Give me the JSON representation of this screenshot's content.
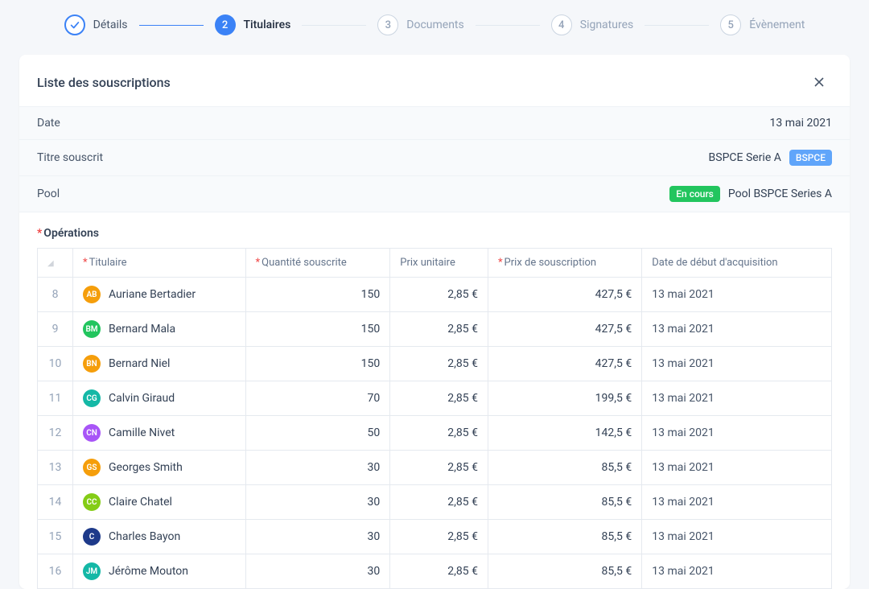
{
  "stepper": {
    "steps": [
      {
        "num": "1",
        "label": "Détails",
        "state": "done"
      },
      {
        "num": "2",
        "label": "Titulaires",
        "state": "active"
      },
      {
        "num": "3",
        "label": "Documents",
        "state": "pending"
      },
      {
        "num": "4",
        "label": "Signatures",
        "state": "pending"
      },
      {
        "num": "5",
        "label": "Évènement",
        "state": "pending"
      }
    ]
  },
  "card": {
    "title": "Liste des souscriptions"
  },
  "info": {
    "date_label": "Date",
    "date_value": "13 mai 2021",
    "titre_label": "Titre souscrit",
    "titre_value": "BSPCE Serie A",
    "titre_badge": "BSPCE",
    "pool_label": "Pool",
    "pool_badge": "En cours",
    "pool_value": "Pool BSPCE Series A"
  },
  "ops": {
    "section_title": "Opérations",
    "columns": {
      "titulaire": "Titulaire",
      "quantite": "Quantité souscrite",
      "prix_unitaire": "Prix unitaire",
      "prix_souscription": "Prix de souscription",
      "date_debut": "Date de début d'acquisition"
    },
    "required": {
      "titulaire": true,
      "quantite": true,
      "prix_souscription": true
    },
    "avatar_colors": {
      "orange": "#f59e0b",
      "green": "#22c55e",
      "teal": "#14b8a6",
      "violet": "#a855f7",
      "lime": "#84cc16",
      "navy": "#1e3a8a"
    },
    "rows": [
      {
        "idx": "8",
        "initials": "AB",
        "color": "orange",
        "name": "Auriane Bertadier",
        "qty": "150",
        "unit": "2,85 €",
        "sub": "427,5 €",
        "date": "13 mai 2021"
      },
      {
        "idx": "9",
        "initials": "BM",
        "color": "green",
        "name": "Bernard Mala",
        "qty": "150",
        "unit": "2,85 €",
        "sub": "427,5 €",
        "date": "13 mai 2021"
      },
      {
        "idx": "10",
        "initials": "BN",
        "color": "orange",
        "name": "Bernard Niel",
        "qty": "150",
        "unit": "2,85 €",
        "sub": "427,5 €",
        "date": "13 mai 2021"
      },
      {
        "idx": "11",
        "initials": "CG",
        "color": "teal",
        "name": "Calvin Giraud",
        "qty": "70",
        "unit": "2,85 €",
        "sub": "199,5 €",
        "date": "13 mai 2021"
      },
      {
        "idx": "12",
        "initials": "CN",
        "color": "violet",
        "name": "Camille Nivet",
        "qty": "50",
        "unit": "2,85 €",
        "sub": "142,5 €",
        "date": "13 mai 2021"
      },
      {
        "idx": "13",
        "initials": "GS",
        "color": "orange",
        "name": "Georges Smith",
        "qty": "30",
        "unit": "2,85 €",
        "sub": "85,5 €",
        "date": "13 mai 2021"
      },
      {
        "idx": "14",
        "initials": "CC",
        "color": "lime",
        "name": "Claire Chatel",
        "qty": "30",
        "unit": "2,85 €",
        "sub": "85,5 €",
        "date": "13 mai 2021"
      },
      {
        "idx": "15",
        "initials": "C",
        "color": "navy",
        "name": "Charles Bayon",
        "qty": "30",
        "unit": "2,85 €",
        "sub": "85,5 €",
        "date": "13 mai 2021"
      },
      {
        "idx": "16",
        "initials": "JM",
        "color": "teal",
        "name": "Jérôme Mouton",
        "qty": "30",
        "unit": "2,85 €",
        "sub": "85,5 €",
        "date": "13 mai 2021"
      }
    ]
  }
}
